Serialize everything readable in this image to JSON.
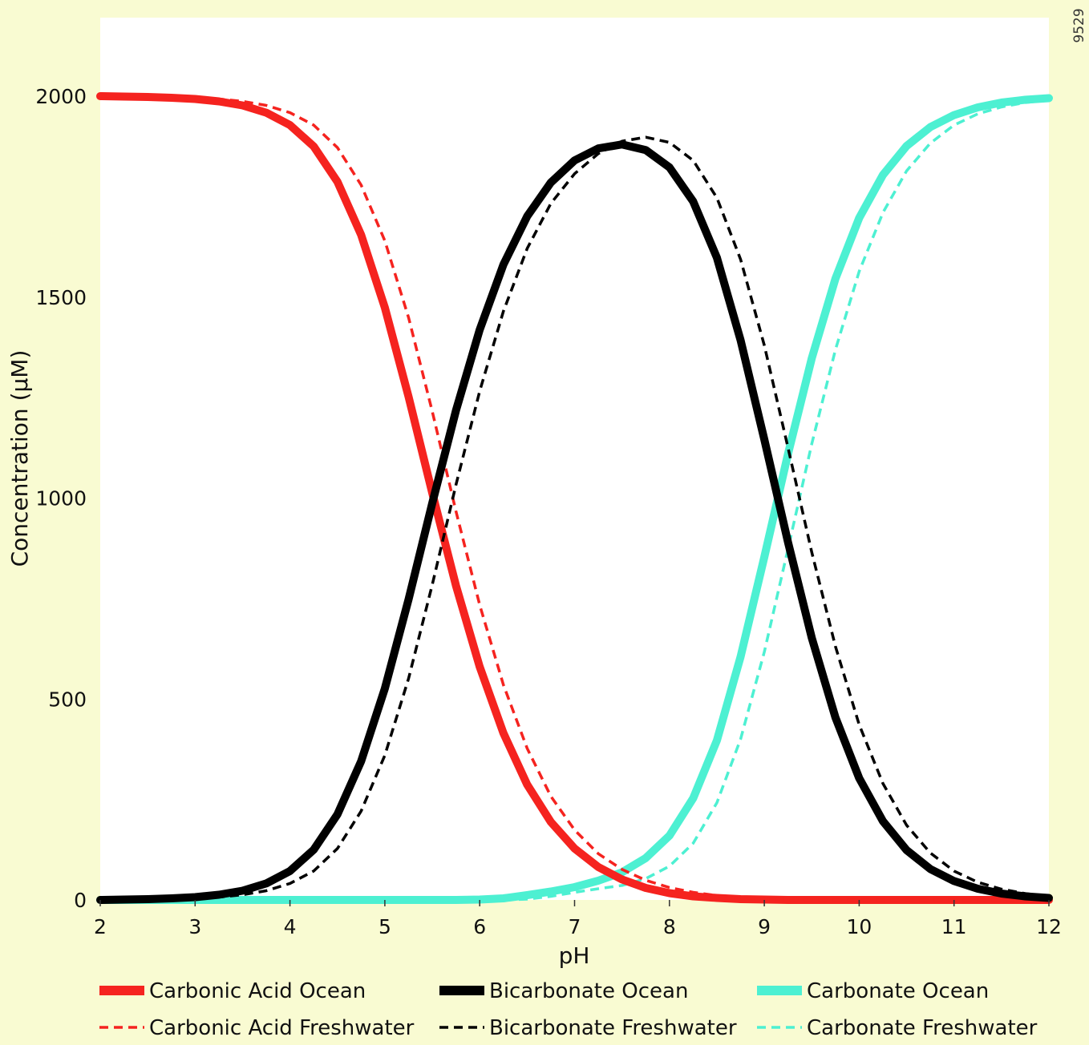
{
  "figure_code": "9529",
  "colors": {
    "page_background": "#f9fbd2",
    "plot_background": "#ffffff",
    "carbonic_acid": "#f5231f",
    "bicarbonate": "#000000",
    "carbonate": "#4df0d2"
  },
  "chart_data": {
    "type": "line",
    "title": "",
    "xlabel": "pH",
    "ylabel": "Concentration (μM)",
    "xlim": [
      2,
      12
    ],
    "ylim": [
      0,
      2200
    ],
    "x_ticks": [
      "2",
      "3",
      "4",
      "5",
      "6",
      "7",
      "8",
      "9",
      "10",
      "11",
      "12"
    ],
    "y_ticks": [
      "0",
      "500",
      "1000",
      "1500",
      "2000"
    ],
    "grid": false,
    "legend_position": "bottom",
    "x": [
      2.0,
      2.25,
      2.5,
      2.75,
      3.0,
      3.25,
      3.5,
      3.75,
      4.0,
      4.25,
      4.5,
      4.75,
      5.0,
      5.25,
      5.5,
      5.75,
      6.0,
      6.25,
      6.5,
      6.75,
      7.0,
      7.25,
      7.5,
      7.75,
      8.0,
      8.25,
      8.5,
      8.75,
      9.0,
      9.25,
      9.5,
      9.75,
      10.0,
      10.25,
      10.5,
      10.75,
      11.0,
      11.25,
      11.5,
      11.75,
      12.0
    ],
    "series": [
      {
        "name": "Carbonic Acid Ocean",
        "style": "solid",
        "color": "#f5231f",
        "values": [
          2000,
          1999,
          1998,
          1996,
          1993,
          1987,
          1977,
          1959,
          1928,
          1875,
          1787,
          1655,
          1474,
          1252,
          1013,
          782,
          580,
          415,
          287,
          194,
          128,
          82,
          51,
          30,
          17,
          9,
          5,
          2,
          1,
          0,
          0,
          0,
          0,
          0,
          0,
          0,
          0,
          0,
          0,
          0,
          0
        ]
      },
      {
        "name": "Carbonic Acid Freshwater",
        "style": "dashed",
        "color": "#f5231f",
        "values": [
          2000,
          2000,
          1999,
          1998,
          1996,
          1993,
          1987,
          1977,
          1959,
          1928,
          1872,
          1779,
          1640,
          1449,
          1216,
          967,
          734,
          535,
          377,
          258,
          174,
          115,
          76,
          49,
          31,
          19,
          11,
          6,
          3,
          1,
          0,
          0,
          0,
          0,
          0,
          0,
          0,
          0,
          0,
          0,
          0
        ]
      },
      {
        "name": "Bicarbonate Ocean",
        "style": "solid",
        "color": "#000000",
        "values": [
          0,
          1,
          2,
          4,
          7,
          13,
          23,
          41,
          72,
          125,
          213,
          345,
          526,
          748,
          987,
          1218,
          1419,
          1581,
          1701,
          1785,
          1840,
          1870,
          1880,
          1866,
          1823,
          1738,
          1598,
          1393,
          1146,
          890,
          652,
          454,
          303,
          196,
          124,
          77,
          47,
          28,
          16,
          9,
          5
        ]
      },
      {
        "name": "Bicarbonate Freshwater",
        "style": "dashed",
        "color": "#000000",
        "values": [
          0,
          0,
          1,
          2,
          4,
          7,
          13,
          23,
          41,
          72,
          128,
          221,
          360,
          551,
          784,
          1033,
          1266,
          1465,
          1621,
          1733,
          1807,
          1857,
          1888,
          1898,
          1885,
          1840,
          1747,
          1594,
          1380,
          1125,
          865,
          631,
          436,
          290,
          186,
          117,
          72,
          44,
          27,
          16,
          9
        ]
      },
      {
        "name": "Carbonate Ocean",
        "style": "solid",
        "color": "#4df0d2",
        "values": [
          0,
          0,
          0,
          0,
          0,
          0,
          0,
          0,
          0,
          0,
          0,
          0,
          0,
          0,
          0,
          0,
          1,
          4,
          12,
          21,
          32,
          48,
          69,
          104,
          160,
          253,
          397,
          605,
          853,
          1110,
          1348,
          1546,
          1697,
          1804,
          1876,
          1923,
          1953,
          1972,
          1984,
          1991,
          1995
        ]
      },
      {
        "name": "Carbonate Freshwater",
        "style": "dashed",
        "color": "#4df0d2",
        "values": [
          0,
          0,
          0,
          0,
          0,
          0,
          0,
          0,
          0,
          0,
          0,
          0,
          0,
          0,
          0,
          0,
          0,
          0,
          2,
          9,
          19,
          28,
          36,
          53,
          84,
          141,
          242,
          400,
          617,
          874,
          1135,
          1369,
          1564,
          1710,
          1814,
          1883,
          1928,
          1956,
          1973,
          1984,
          1991
        ]
      }
    ]
  }
}
